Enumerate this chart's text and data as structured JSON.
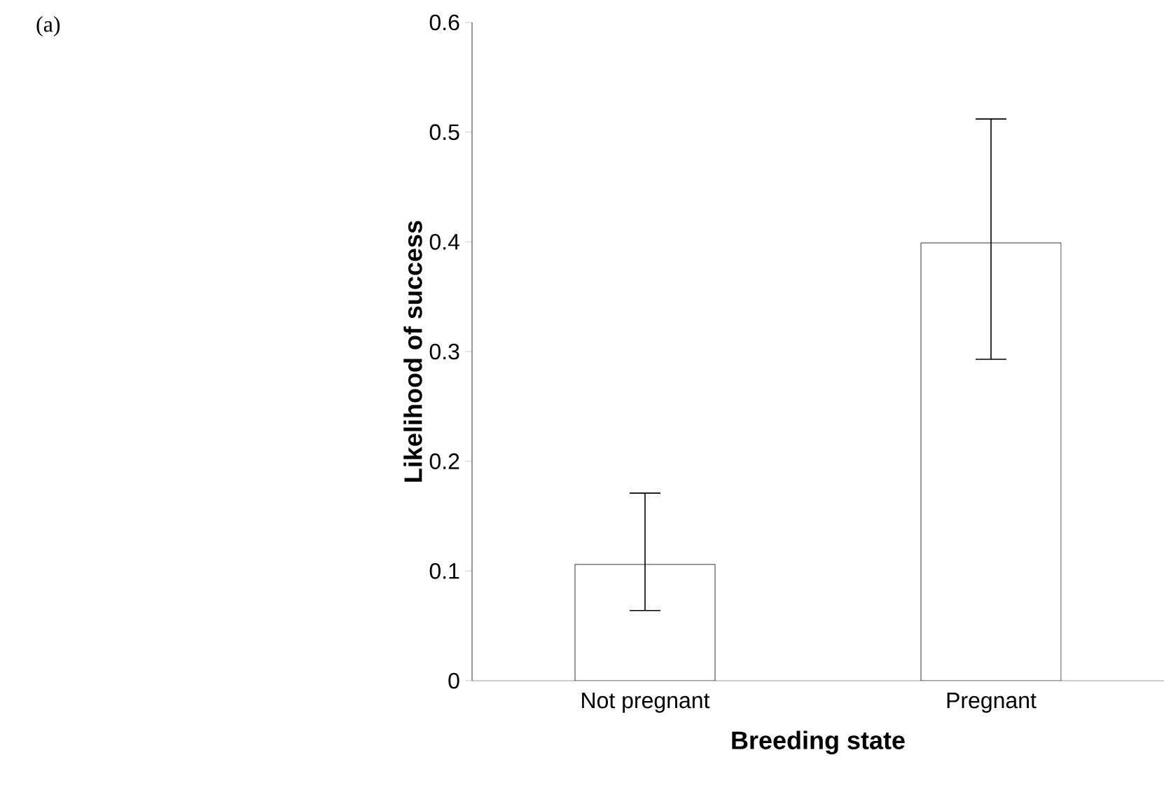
{
  "chart_data": {
    "type": "bar",
    "title": "(a)",
    "xlabel": "Breeding state",
    "ylabel": "Likelihood of success",
    "categories": [
      "Not pregnant",
      "Pregnant"
    ],
    "values": [
      0.106,
      0.399
    ],
    "errors": [
      [
        0.064,
        0.171
      ],
      [
        0.293,
        0.512
      ]
    ],
    "color": "#ffffff",
    "ylim": [
      0,
      0.6
    ],
    "yticks": [
      0,
      0.1,
      0.2,
      0.3,
      0.4,
      0.5,
      0.6
    ],
    "grid": false
  }
}
